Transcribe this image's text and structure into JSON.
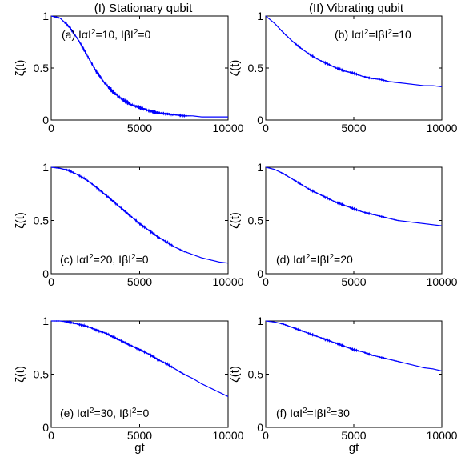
{
  "column_titles": [
    "(I) Stationary qubit",
    "(II) Vibrating qubit"
  ],
  "chart_data": [
    {
      "type": "line",
      "annotation": "(a) |α|²=10, |β|²=0",
      "annotation_parts": [
        "(a) I",
        "α",
        "I",
        "2",
        "=10, I",
        "β",
        "I",
        "2",
        "=0"
      ],
      "ylabel": "ζ(t)",
      "xlabel": "",
      "xlim": [
        0,
        10000
      ],
      "ylim": [
        0,
        1
      ],
      "xticks": [
        "0",
        "5000",
        "10000"
      ],
      "yticks": [
        "0",
        "0.5",
        "1"
      ],
      "line_color": "#0000ff",
      "series": [
        {
          "x": [
            0,
            500,
            1000,
            1500,
            2000,
            2500,
            3000,
            3500,
            4000,
            4500,
            5000,
            5500,
            6000,
            6500,
            7000,
            7500,
            8000,
            8500,
            9000,
            9500,
            10000
          ],
          "y": [
            1.0,
            0.98,
            0.9,
            0.78,
            0.63,
            0.48,
            0.36,
            0.27,
            0.2,
            0.15,
            0.12,
            0.09,
            0.07,
            0.06,
            0.05,
            0.04,
            0.04,
            0.03,
            0.03,
            0.03,
            0.03
          ]
        }
      ]
    },
    {
      "type": "line",
      "annotation": "(b) |α|²=|β|²=10",
      "annotation_parts": [
        "(b) I",
        "α",
        "I",
        "2",
        "=I",
        "β",
        "I",
        "2",
        "=10"
      ],
      "ylabel": "ζ(t)",
      "xlabel": "",
      "xlim": [
        0,
        10000
      ],
      "ylim": [
        0,
        1
      ],
      "xticks": [
        "0",
        "5000",
        "10000"
      ],
      "yticks": [
        "0",
        "0.5",
        "1"
      ],
      "line_color": "#0000ff",
      "series": [
        {
          "x": [
            0,
            500,
            1000,
            1500,
            2000,
            2500,
            3000,
            3500,
            4000,
            4500,
            5000,
            5500,
            6000,
            6500,
            7000,
            7500,
            8000,
            8500,
            9000,
            9500,
            10000
          ],
          "y": [
            1.0,
            0.93,
            0.84,
            0.76,
            0.69,
            0.63,
            0.58,
            0.54,
            0.5,
            0.47,
            0.45,
            0.42,
            0.4,
            0.39,
            0.37,
            0.36,
            0.35,
            0.34,
            0.33,
            0.33,
            0.32
          ]
        }
      ]
    },
    {
      "type": "line",
      "annotation": "(c) |α|²=20, |β|²=0",
      "annotation_parts": [
        "(c) I",
        "α",
        "I",
        "2",
        "=20, I",
        "β",
        "I",
        "2",
        "=0"
      ],
      "ylabel": "ζ(t)",
      "xlabel": "",
      "xlim": [
        0,
        10000
      ],
      "ylim": [
        0,
        1
      ],
      "xticks": [
        "0",
        "5000",
        "10000"
      ],
      "yticks": [
        "0",
        "0.5",
        "1"
      ],
      "line_color": "#0000ff",
      "series": [
        {
          "x": [
            0,
            500,
            1000,
            1500,
            2000,
            2500,
            3000,
            3500,
            4000,
            4500,
            5000,
            5500,
            6000,
            6500,
            7000,
            7500,
            8000,
            8500,
            9000,
            9500,
            10000
          ],
          "y": [
            1.0,
            0.99,
            0.97,
            0.93,
            0.88,
            0.82,
            0.75,
            0.68,
            0.61,
            0.54,
            0.47,
            0.41,
            0.35,
            0.3,
            0.25,
            0.21,
            0.18,
            0.15,
            0.13,
            0.11,
            0.1
          ]
        }
      ]
    },
    {
      "type": "line",
      "annotation": "(d) |α|²=|β|²=20",
      "annotation_parts": [
        "(d) I",
        "α",
        "I",
        "2",
        "=I",
        "β",
        "I",
        "2",
        "=20"
      ],
      "ylabel": "ζ(t)",
      "xlabel": "",
      "xlim": [
        0,
        10000
      ],
      "ylim": [
        0,
        1
      ],
      "xticks": [
        "0",
        "5000",
        "10000"
      ],
      "yticks": [
        "0",
        "0.5",
        "1"
      ],
      "line_color": "#0000ff",
      "series": [
        {
          "x": [
            0,
            500,
            1000,
            1500,
            2000,
            2500,
            3000,
            3500,
            4000,
            4500,
            5000,
            5500,
            6000,
            6500,
            7000,
            7500,
            8000,
            8500,
            9000,
            9500,
            10000
          ],
          "y": [
            1.0,
            0.98,
            0.94,
            0.89,
            0.84,
            0.79,
            0.75,
            0.71,
            0.67,
            0.64,
            0.61,
            0.58,
            0.56,
            0.54,
            0.52,
            0.5,
            0.49,
            0.48,
            0.47,
            0.46,
            0.45
          ]
        }
      ]
    },
    {
      "type": "line",
      "annotation": "(e) |α|²=30, |β|²=0",
      "annotation_parts": [
        "(e) I",
        "α",
        "I",
        "2",
        "=30, I",
        "β",
        "I",
        "2",
        "=0"
      ],
      "ylabel": "ζ(t)",
      "xlabel": "gt",
      "xlim": [
        0,
        10000
      ],
      "ylim": [
        0,
        1
      ],
      "xticks": [
        "0",
        "5000",
        "10000"
      ],
      "yticks": [
        "0",
        "0.5",
        "1"
      ],
      "line_color": "#0000ff",
      "series": [
        {
          "x": [
            0,
            500,
            1000,
            1500,
            2000,
            2500,
            3000,
            3500,
            4000,
            4500,
            5000,
            5500,
            6000,
            6500,
            7000,
            7500,
            8000,
            8500,
            9000,
            9500,
            10000
          ],
          "y": [
            1.0,
            1.0,
            0.99,
            0.97,
            0.95,
            0.92,
            0.89,
            0.85,
            0.81,
            0.77,
            0.73,
            0.69,
            0.64,
            0.6,
            0.55,
            0.5,
            0.46,
            0.41,
            0.37,
            0.33,
            0.29
          ]
        }
      ]
    },
    {
      "type": "line",
      "annotation": "(f) |α|²=|β|²=30",
      "annotation_parts": [
        "(f) I",
        "α",
        "I",
        "2",
        "=I",
        "β",
        "I",
        "2",
        "=30"
      ],
      "ylabel": "ζ(t)",
      "xlabel": "gt",
      "xlim": [
        0,
        10000
      ],
      "ylim": [
        0,
        1
      ],
      "xticks": [
        "0",
        "5000",
        "10000"
      ],
      "yticks": [
        "0",
        "0.5",
        "1"
      ],
      "line_color": "#0000ff",
      "series": [
        {
          "x": [
            0,
            500,
            1000,
            1500,
            2000,
            2500,
            3000,
            3500,
            4000,
            4500,
            5000,
            5500,
            6000,
            6500,
            7000,
            7500,
            8000,
            8500,
            9000,
            9500,
            10000
          ],
          "y": [
            1.0,
            0.99,
            0.97,
            0.94,
            0.91,
            0.88,
            0.85,
            0.82,
            0.79,
            0.76,
            0.73,
            0.71,
            0.68,
            0.66,
            0.64,
            0.62,
            0.6,
            0.58,
            0.56,
            0.55,
            0.53
          ]
        }
      ]
    }
  ]
}
